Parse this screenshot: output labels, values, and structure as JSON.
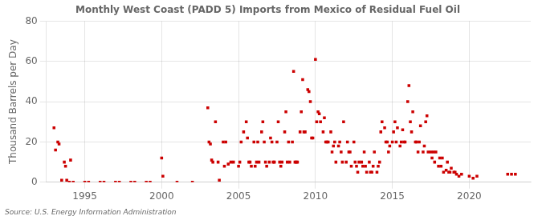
{
  "chart_data": {
    "type": "scatter",
    "title": "Monthly West Coast (PADD 5) Imports from Mexico of Residual Fuel Oil",
    "ylabel": "Thousand Barrels per Day",
    "annotations": [
      "Source: U.S. Energy Information Administration"
    ],
    "color": "#cc0000",
    "marker": "square",
    "grid": true,
    "xlim": [
      1992.5,
      2024.0
    ],
    "xticks": [
      1995,
      2000,
      2005,
      2010,
      2015,
      2020
    ],
    "ylim": [
      0,
      80
    ],
    "yticks": [
      0,
      20,
      40,
      60,
      80
    ],
    "x": [
      1993.0,
      1993.1,
      1993.25,
      1993.33,
      1993.5,
      1993.67,
      1993.75,
      1993.83,
      1994.0,
      1994.08,
      1994.25,
      1995.0,
      1995.25,
      1996.0,
      1996.25,
      1997.0,
      1997.25,
      1998.0,
      1998.25,
      1999.0,
      1999.25,
      2000.0,
      2000.08,
      2001.0,
      2002.0,
      2003.0,
      2003.08,
      2003.17,
      2003.25,
      2003.33,
      2003.5,
      2003.67,
      2003.75,
      2004.0,
      2004.08,
      2004.17,
      2004.33,
      2004.5,
      2004.67,
      2005.0,
      2005.08,
      2005.17,
      2005.33,
      2005.5,
      2005.58,
      2005.67,
      2005.75,
      2005.83,
      2006.0,
      2006.08,
      2006.17,
      2006.25,
      2006.33,
      2006.5,
      2006.58,
      2006.67,
      2006.75,
      2006.83,
      2007.0,
      2007.08,
      2007.17,
      2007.25,
      2007.33,
      2007.5,
      2007.58,
      2007.67,
      2007.75,
      2007.83,
      2008.0,
      2008.08,
      2008.17,
      2008.25,
      2008.33,
      2008.5,
      2008.58,
      2008.67,
      2008.75,
      2008.83,
      2009.0,
      2009.08,
      2009.17,
      2009.25,
      2009.33,
      2009.5,
      2009.58,
      2009.67,
      2009.75,
      2009.83,
      2010.0,
      2010.08,
      2010.17,
      2010.25,
      2010.33,
      2010.5,
      2010.58,
      2010.67,
      2010.75,
      2010.83,
      2011.0,
      2011.08,
      2011.17,
      2011.25,
      2011.33,
      2011.5,
      2011.58,
      2011.67,
      2011.75,
      2011.83,
      2012.0,
      2012.08,
      2012.17,
      2012.25,
      2012.33,
      2012.5,
      2012.58,
      2012.67,
      2012.75,
      2012.83,
      2013.0,
      2013.08,
      2013.17,
      2013.25,
      2013.33,
      2013.5,
      2013.58,
      2013.67,
      2013.75,
      2013.83,
      2014.0,
      2014.08,
      2014.17,
      2014.25,
      2014.33,
      2014.5,
      2014.58,
      2014.67,
      2014.75,
      2014.83,
      2015.0,
      2015.08,
      2015.17,
      2015.25,
      2015.33,
      2015.5,
      2015.58,
      2015.67,
      2015.75,
      2015.83,
      2016.0,
      2016.08,
      2016.17,
      2016.25,
      2016.33,
      2016.5,
      2016.58,
      2016.67,
      2016.75,
      2016.83,
      2017.0,
      2017.08,
      2017.17,
      2017.25,
      2017.33,
      2017.5,
      2017.58,
      2017.67,
      2017.75,
      2017.83,
      2018.0,
      2018.08,
      2018.17,
      2018.25,
      2018.33,
      2018.5,
      2018.58,
      2018.67,
      2018.75,
      2018.83,
      2019.0,
      2019.08,
      2019.17,
      2019.33,
      2019.5,
      2020.0,
      2020.25,
      2020.5,
      2022.5,
      2022.75,
      2023.0
    ],
    "values": [
      27,
      16,
      20,
      19,
      1,
      10,
      8,
      1,
      0,
      11,
      0,
      0,
      0,
      0,
      0,
      0,
      0,
      0,
      0,
      0,
      0,
      12,
      3,
      0,
      0,
      37,
      20,
      19,
      11,
      10,
      30,
      10,
      1,
      20,
      8,
      20,
      9,
      10,
      10,
      8,
      10,
      20,
      25,
      30,
      22,
      10,
      10,
      8,
      20,
      8,
      10,
      20,
      10,
      25,
      30,
      20,
      10,
      8,
      10,
      22,
      20,
      10,
      10,
      20,
      30,
      10,
      8,
      10,
      25,
      35,
      10,
      20,
      10,
      20,
      55,
      10,
      10,
      10,
      25,
      35,
      51,
      25,
      25,
      46,
      45,
      40,
      22,
      22,
      61,
      30,
      35,
      34,
      30,
      25,
      32,
      20,
      20,
      20,
      25,
      15,
      18,
      20,
      10,
      18,
      20,
      15,
      10,
      30,
      10,
      20,
      15,
      15,
      8,
      20,
      10,
      8,
      5,
      10,
      10,
      8,
      15,
      8,
      5,
      10,
      5,
      5,
      8,
      15,
      5,
      8,
      10,
      25,
      30,
      27,
      20,
      20,
      15,
      18,
      20,
      25,
      30,
      20,
      27,
      18,
      20,
      26,
      20,
      20,
      40,
      48,
      30,
      25,
      35,
      20,
      20,
      15,
      20,
      28,
      15,
      18,
      30,
      33,
      15,
      15,
      12,
      15,
      10,
      15,
      8,
      12,
      8,
      12,
      5,
      6,
      10,
      5,
      5,
      7,
      5,
      5,
      4,
      3,
      4,
      3,
      2,
      3,
      4,
      4,
      4
    ]
  }
}
